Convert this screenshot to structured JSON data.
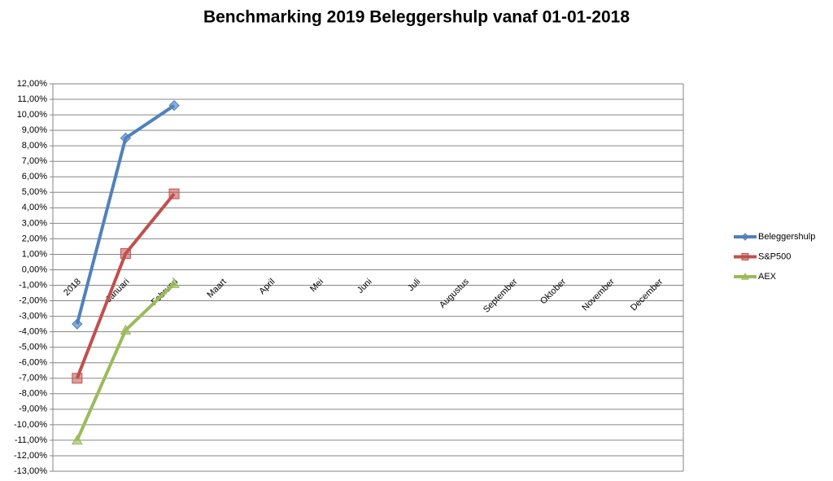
{
  "chart_data": {
    "type": "line",
    "title": "Benchmarking 2019 Beleggershulp vanaf 01-01-2018",
    "categories": [
      "2018",
      "Januari",
      "Februari",
      "Maart",
      "April",
      "Mei",
      "Juni",
      "Juli",
      "Augustus",
      "September",
      "Oktober",
      "November",
      "December"
    ],
    "series": [
      {
        "name": "Beleggershulp",
        "color": "#4f81bd",
        "marker": "diamond",
        "values": [
          -3.5,
          8.5,
          10.6,
          null,
          null,
          null,
          null,
          null,
          null,
          null,
          null,
          null,
          null
        ]
      },
      {
        "name": "S&P500",
        "color": "#c0504d",
        "marker": "square",
        "values": [
          -7.0,
          1.05,
          4.9,
          null,
          null,
          null,
          null,
          null,
          null,
          null,
          null,
          null,
          null
        ]
      },
      {
        "name": "AEX",
        "color": "#9bbb59",
        "marker": "triangle",
        "values": [
          -11.0,
          -3.9,
          -0.9,
          null,
          null,
          null,
          null,
          null,
          null,
          null,
          null,
          null,
          null
        ]
      }
    ],
    "ylim": [
      -13,
      12
    ],
    "yticks": [
      {
        "value": 12,
        "label": "12,00%"
      },
      {
        "value": 11,
        "label": "11,00%"
      },
      {
        "value": 10,
        "label": "10,00%"
      },
      {
        "value": 9,
        "label": "9,00%"
      },
      {
        "value": 8,
        "label": "8,00%"
      },
      {
        "value": 7,
        "label": "7,00%"
      },
      {
        "value": 6,
        "label": "6,00%"
      },
      {
        "value": 5,
        "label": "5,00%"
      },
      {
        "value": 4,
        "label": "4,00%"
      },
      {
        "value": 3,
        "label": "3,00%"
      },
      {
        "value": 2,
        "label": "2,00%"
      },
      {
        "value": 1,
        "label": "1,00%"
      },
      {
        "value": 0,
        "label": "0,00%"
      },
      {
        "value": -1,
        "label": "-1,00%"
      },
      {
        "value": -2,
        "label": "-2,00%"
      },
      {
        "value": -3,
        "label": "-3,00%"
      },
      {
        "value": -4,
        "label": "-4,00%"
      },
      {
        "value": -5,
        "label": "-5,00%"
      },
      {
        "value": -6,
        "label": "-6,00%"
      },
      {
        "value": -7,
        "label": "-7,00%"
      },
      {
        "value": -8,
        "label": "-8,00%"
      },
      {
        "value": -9,
        "label": "-9,00%"
      },
      {
        "value": -10,
        "label": "-10,00%"
      },
      {
        "value": -11,
        "label": "-11,00%"
      },
      {
        "value": -12,
        "label": "-12,00%"
      },
      {
        "value": -13,
        "label": "-13,00%"
      }
    ],
    "grid": true,
    "legend": "right"
  }
}
